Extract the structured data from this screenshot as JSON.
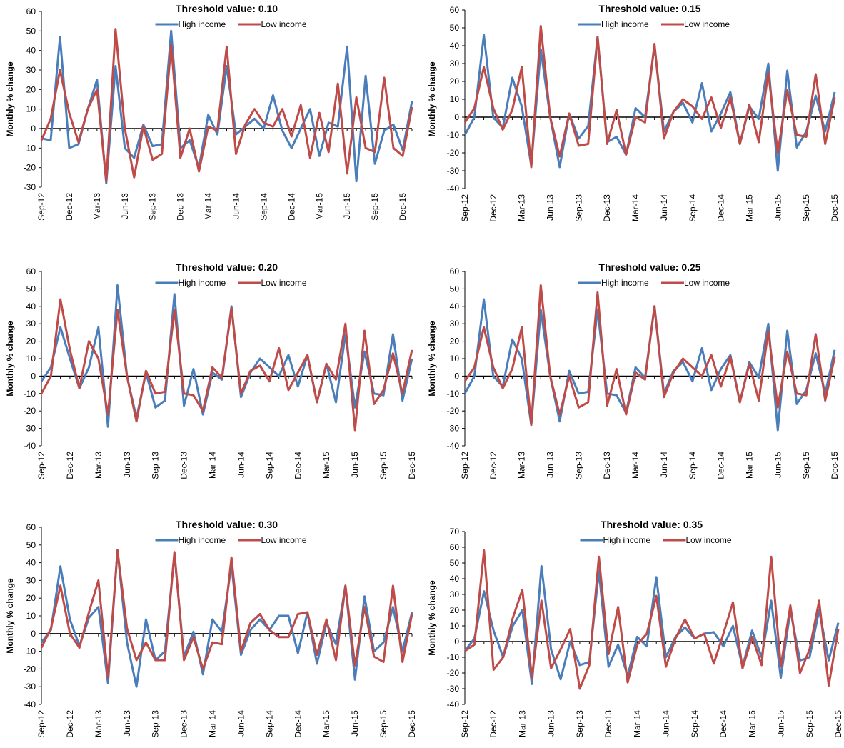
{
  "legend_labels": {
    "high": "High income",
    "low": "Low income"
  },
  "colors": {
    "high": "#4A7EBB",
    "low": "#BE4B48"
  },
  "chart_data": [
    {
      "type": "line",
      "title": "Threshold value: 0.10",
      "ylabel": "Monthly % change",
      "ylim": [
        -30,
        60
      ],
      "yticks": [
        -30,
        -20,
        -10,
        0,
        10,
        20,
        30,
        40,
        50,
        60
      ],
      "x_tick_labels": [
        "Sep-12",
        "Dec-12",
        "Mar-13",
        "Jun-13",
        "Sep-13",
        "Dec-13",
        "Mar-14",
        "Jun-14",
        "Sep-14",
        "Dec-14",
        "Mar-15",
        "Jun-15",
        "Sep-15",
        "Dec-15"
      ],
      "x_tick_every": 3,
      "legend_position": "top",
      "series": [
        {
          "name": "High income",
          "values": [
            -5,
            -6,
            47,
            -10,
            -8,
            10,
            25,
            -28,
            32,
            -10,
            -15,
            2,
            -9,
            -8,
            50,
            -10,
            -6,
            -20,
            7,
            -3,
            32,
            -3,
            1,
            5,
            0,
            17,
            -1,
            -10,
            0,
            10,
            -14,
            3,
            1,
            42,
            -27,
            27,
            -18,
            -1,
            2,
            -11,
            14
          ]
        },
        {
          "name": "Low income",
          "values": [
            -6,
            5,
            30,
            8,
            -7,
            10,
            20,
            -27,
            51,
            0,
            -25,
            1,
            -16,
            -13,
            43,
            -15,
            0,
            -22,
            1,
            -1,
            42,
            -13,
            2,
            10,
            3,
            1,
            10,
            -4,
            12,
            -15,
            8,
            -12,
            23,
            -23,
            16,
            -10,
            -12,
            26,
            -10,
            -14,
            11
          ]
        }
      ]
    },
    {
      "type": "line",
      "title": "Threshold value: 0.15",
      "ylabel": "Monthly % change",
      "ylim": [
        -40,
        60
      ],
      "yticks": [
        -40,
        -30,
        -20,
        -10,
        0,
        10,
        20,
        30,
        40,
        50,
        60
      ],
      "x_tick_labels": [
        "Sep-12",
        "Dec-12",
        "Mar-13",
        "Jun-13",
        "Sep-13",
        "Dec-13",
        "Mar-14",
        "Jun-14",
        "Sep-14",
        "Dec-14",
        "Mar-15",
        "Jun-15",
        "Sep-15",
        "Dec-15"
      ],
      "x_tick_every": 3,
      "legend_position": "top",
      "series": [
        {
          "name": "High income",
          "values": [
            -10,
            0,
            46,
            0,
            -6,
            22,
            6,
            -27,
            38,
            0,
            -28,
            2,
            -12,
            -5,
            45,
            -14,
            -11,
            -21,
            5,
            0,
            40,
            -8,
            3,
            8,
            -3,
            19,
            -8,
            2,
            14,
            -15,
            6,
            -1,
            30,
            -30,
            26,
            -17,
            -8,
            12,
            -8,
            14
          ]
        },
        {
          "name": "Low income",
          "values": [
            -3,
            5,
            28,
            5,
            -7,
            4,
            28,
            -28,
            51,
            0,
            -22,
            2,
            -16,
            -15,
            45,
            -15,
            4,
            -21,
            0,
            -3,
            41,
            -12,
            3,
            10,
            6,
            -1,
            11,
            -6,
            11,
            -15,
            7,
            -14,
            25,
            -20,
            15,
            -10,
            -11,
            24,
            -15,
            11
          ]
        }
      ]
    },
    {
      "type": "line",
      "title": "Threshold value: 0.20",
      "ylabel": "Monthly % change",
      "ylim": [
        -40,
        60
      ],
      "yticks": [
        -40,
        -30,
        -20,
        -10,
        0,
        10,
        20,
        30,
        40,
        50,
        60
      ],
      "x_tick_labels": [
        "Sep-12",
        "Dec-12",
        "Mar-13",
        "Jun-13",
        "Sep-13",
        "Dec-13",
        "Mar-14",
        "Jun-14",
        "Sep-14",
        "Dec-14",
        "Mar-15",
        "Jun-15",
        "Sep-15",
        "Dec-15"
      ],
      "x_tick_every": 3,
      "legend_position": "top",
      "series": [
        {
          "name": "High income",
          "values": [
            -3,
            5,
            28,
            10,
            -7,
            5,
            28,
            -29,
            52,
            0,
            -24,
            2,
            -18,
            -14,
            47,
            -17,
            4,
            -22,
            2,
            -2,
            40,
            -12,
            2,
            10,
            5,
            0,
            12,
            -6,
            12,
            -15,
            7,
            -15,
            24,
            -18,
            14,
            -10,
            -11,
            24,
            -14,
            10
          ]
        },
        {
          "name": "Low income",
          "values": [
            -10,
            0,
            44,
            15,
            -7,
            20,
            10,
            -22,
            38,
            0,
            -26,
            3,
            -10,
            -9,
            38,
            -10,
            -11,
            -20,
            5,
            -1,
            39,
            -10,
            3,
            6,
            -3,
            16,
            -8,
            2,
            12,
            -15,
            7,
            -2,
            30,
            -31,
            26,
            -16,
            -8,
            13,
            -10,
            15
          ]
        }
      ]
    },
    {
      "type": "line",
      "title": "Threshold value: 0.25",
      "ylabel": "Monthly % change",
      "ylim": [
        -40,
        60
      ],
      "yticks": [
        -40,
        -30,
        -20,
        -10,
        0,
        10,
        20,
        30,
        40,
        50,
        60
      ],
      "x_tick_labels": [
        "Sep-12",
        "Dec-12",
        "Mar-13",
        "Jun-13",
        "Sep-13",
        "Dec-13",
        "Mar-14",
        "Jun-14",
        "Sep-14",
        "Dec-14",
        "Mar-15",
        "Jun-15",
        "Sep-15",
        "Dec-15"
      ],
      "x_tick_every": 3,
      "legend_position": "top",
      "series": [
        {
          "name": "High income",
          "values": [
            -10,
            0,
            44,
            0,
            -6,
            21,
            10,
            -28,
            38,
            0,
            -26,
            3,
            -10,
            -9,
            38,
            -10,
            -11,
            -21,
            5,
            -1,
            40,
            -10,
            3,
            8,
            -3,
            16,
            -8,
            4,
            12,
            -15,
            8,
            -1,
            30,
            -31,
            26,
            -16,
            -8,
            13,
            -10,
            15
          ]
        },
        {
          "name": "Low income",
          "values": [
            -3,
            5,
            28,
            5,
            -7,
            4,
            28,
            -28,
            52,
            0,
            -22,
            0,
            -18,
            -15,
            48,
            -17,
            4,
            -22,
            2,
            -2,
            40,
            -12,
            2,
            10,
            5,
            0,
            12,
            -6,
            11,
            -15,
            7,
            -14,
            26,
            -18,
            14,
            -10,
            -11,
            24,
            -14,
            11
          ]
        }
      ]
    },
    {
      "type": "line",
      "title": "Threshold value: 0.30",
      "ylabel": "Monthly % change",
      "ylim": [
        -40,
        60
      ],
      "yticks": [
        -40,
        -30,
        -20,
        -10,
        0,
        10,
        20,
        30,
        40,
        50,
        60
      ],
      "x_tick_labels": [
        "Sep-12",
        "Dec-12",
        "Mar-13",
        "Jun-13",
        "Sep-13",
        "Dec-13",
        "Mar-14",
        "Jun-14",
        "Sep-14",
        "Dec-14",
        "Mar-15",
        "Jun-15",
        "Sep-15",
        "Dec-15"
      ],
      "x_tick_every": 3,
      "legend_position": "top",
      "series": [
        {
          "name": "High income",
          "values": [
            -5,
            2,
            38,
            8,
            -7,
            9,
            15,
            -28,
            47,
            -5,
            -30,
            8,
            -15,
            -10,
            45,
            -13,
            1,
            -23,
            8,
            1,
            39,
            -12,
            2,
            8,
            2,
            10,
            10,
            -11,
            12,
            -17,
            6,
            -6,
            27,
            -26,
            21,
            -10,
            -5,
            15,
            -10,
            12
          ]
        },
        {
          "name": "Low income",
          "values": [
            -8,
            3,
            27,
            0,
            -8,
            12,
            30,
            -25,
            47,
            3,
            -15,
            -5,
            -15,
            -15,
            46,
            -15,
            -2,
            -20,
            -5,
            -6,
            43,
            -10,
            6,
            11,
            2,
            -2,
            -2,
            11,
            12,
            -12,
            8,
            -15,
            27,
            -18,
            15,
            -13,
            -16,
            27,
            -16,
            11
          ]
        }
      ]
    },
    {
      "type": "line",
      "title": "Threshold value: 0.35",
      "ylabel": "Monthly % change",
      "ylim": [
        -40,
        70
      ],
      "yticks": [
        -40,
        -30,
        -20,
        -10,
        0,
        10,
        20,
        30,
        40,
        50,
        60,
        70
      ],
      "x_tick_labels": [
        "Sep-12",
        "Dec-12",
        "Mar-13",
        "Jun-13",
        "Sep-13",
        "Dec-13",
        "Mar-14",
        "Jun-14",
        "Sep-14",
        "Dec-14",
        "Mar-15",
        "Jun-15",
        "Sep-15",
        "Dec-15"
      ],
      "x_tick_every": 3,
      "legend_position": "top",
      "series": [
        {
          "name": "High income",
          "values": [
            -6,
            2,
            32,
            7,
            -10,
            10,
            20,
            -27,
            48,
            -5,
            -24,
            0,
            -15,
            -13,
            45,
            -16,
            -2,
            -22,
            3,
            -3,
            41,
            -10,
            3,
            9,
            2,
            5,
            6,
            -3,
            10,
            -16,
            7,
            -10,
            26,
            -23,
            20,
            -12,
            -10,
            20,
            -12,
            12
          ]
        },
        {
          "name": "Low income",
          "values": [
            -6,
            -2,
            58,
            -18,
            -10,
            15,
            33,
            -23,
            26,
            -17,
            -5,
            8,
            -30,
            -15,
            54,
            -8,
            22,
            -26,
            -2,
            5,
            29,
            -16,
            2,
            14,
            2,
            5,
            -14,
            5,
            25,
            -17,
            3,
            -15,
            54,
            -16,
            23,
            -20,
            -5,
            26,
            -28,
            8
          ]
        }
      ]
    }
  ]
}
